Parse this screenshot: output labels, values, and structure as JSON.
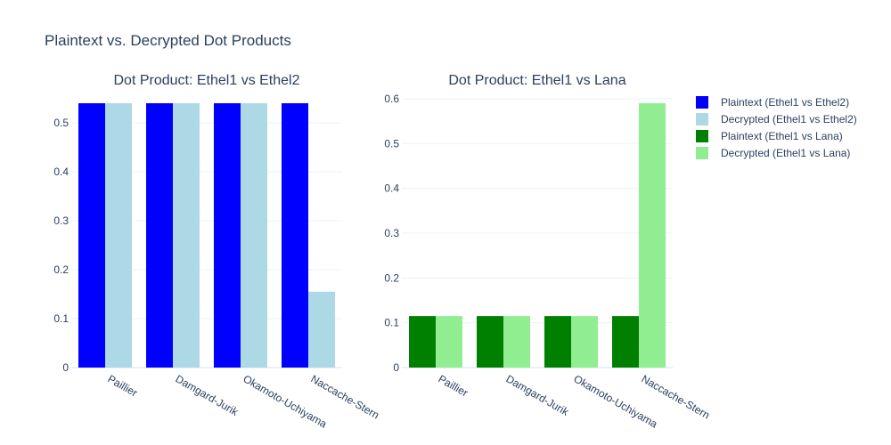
{
  "chart_data": {
    "title": "Plaintext vs. Decrypted Dot Products",
    "legend_position": "top-right",
    "subplots": [
      {
        "type": "bar",
        "title": "Dot Product: Ethel1 vs Ethel2",
        "categories": [
          "Paillier",
          "Damgard-Jurik",
          "Okamoto-Uchiyama",
          "Naccache-Stern"
        ],
        "ylim": [
          0,
          0.54
        ],
        "yticks": [
          0,
          0.1,
          0.2,
          0.3,
          0.4,
          0.5
        ],
        "ytick_labels": [
          "0",
          "0.1",
          "0.2",
          "0.3",
          "0.4",
          "0.5"
        ],
        "grid": true,
        "series": [
          {
            "name": "Plaintext (Ethel1 vs Ethel2)",
            "color": "#0000ff",
            "values": [
              0.54,
              0.54,
              0.54,
              0.54
            ]
          },
          {
            "name": "Decrypted (Ethel1 vs Ethel2)",
            "color": "#add8e6",
            "values": [
              0.54,
              0.54,
              0.54,
              0.155
            ]
          }
        ]
      },
      {
        "type": "bar",
        "title": "Dot Product: Ethel1 vs Lana",
        "categories": [
          "Paillier",
          "Damgard-Jurik",
          "Okamoto-Uchiyama",
          "Naccache-Stern"
        ],
        "ylim": [
          0,
          0.59
        ],
        "yticks": [
          0,
          0.1,
          0.2,
          0.3,
          0.4,
          0.5,
          0.6
        ],
        "ytick_labels": [
          "0",
          "0.1",
          "0.2",
          "0.3",
          "0.4",
          "0.5",
          "0.6"
        ],
        "grid": true,
        "series": [
          {
            "name": "Plaintext (Ethel1 vs Lana)",
            "color": "#008000",
            "values": [
              0.115,
              0.115,
              0.115,
              0.115
            ]
          },
          {
            "name": "Decrypted (Ethel1 vs Lana)",
            "color": "#90ee90",
            "values": [
              0.115,
              0.115,
              0.115,
              0.59
            ]
          }
        ]
      }
    ]
  }
}
